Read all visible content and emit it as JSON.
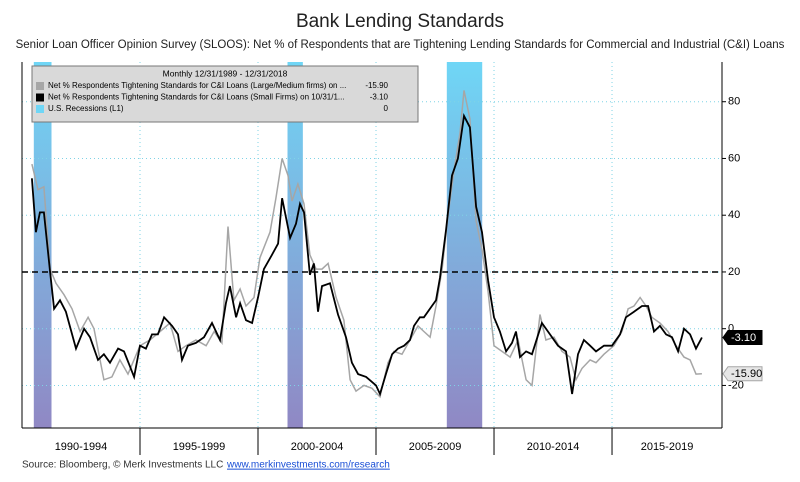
{
  "chart_data": {
    "type": "line",
    "title": "Bank Lending Standards",
    "subtitle": "Senior Loan Officer Opinion Survey (SLOOS): Net % of Respondents that are Tightening Lending Standards for Commercial and Industrial (C&I) Loans",
    "legend_title": "Monthly 12/31/1989 - 12/31/2018",
    "source": "Source: Bloomberg, © Merk Investments LLC",
    "source_link": "www.merkinvestments.com/research",
    "xlim": [
      1990,
      2019.66
    ],
    "ylim": [
      -35,
      94
    ],
    "yticks": [
      80,
      60,
      40,
      20,
      0,
      -20
    ],
    "grid": true,
    "reference_line": 20,
    "x_periods": [
      {
        "start": 1990,
        "end": 1995,
        "label": "1990-1994"
      },
      {
        "start": 1995,
        "end": 2000,
        "label": "1995-1999"
      },
      {
        "start": 2000,
        "end": 2005,
        "label": "2000-2004"
      },
      {
        "start": 2005,
        "end": 2010,
        "label": "2005-2009"
      },
      {
        "start": 2010,
        "end": 2015,
        "label": "2010-2014"
      },
      {
        "start": 2015,
        "end": 2020,
        "label": "2015-2019"
      }
    ],
    "recessions": {
      "name": "U.S. Recessions (L1)",
      "color": "#6fd6f6",
      "color_bottom": "#9088c4",
      "legend_value": 0,
      "spans": [
        [
          1990.5,
          1991.25
        ],
        [
          2001.25,
          2001.9
        ],
        [
          2008.0,
          2009.5
        ]
      ]
    },
    "series": [
      {
        "name": "Net % Respondents Tightening Standards for C&I Loans (Large/Medium firms) on ...",
        "color": "#a6a6a6",
        "last_label": "-15.90",
        "x": [
          1990.42,
          1990.68,
          1990.93,
          1991.19,
          1991.44,
          1991.78,
          1992.12,
          1992.46,
          1992.8,
          1993.05,
          1993.47,
          1993.81,
          1994.15,
          1994.49,
          1995.0,
          1995.42,
          1995.85,
          1996.27,
          1996.61,
          1996.95,
          1997.37,
          1997.8,
          1998.14,
          1998.47,
          1998.73,
          1998.98,
          1999.24,
          1999.49,
          1999.83,
          2000.08,
          2000.51,
          2000.76,
          2001.02,
          2001.27,
          2001.44,
          2001.69,
          2001.95,
          2002.2,
          2002.46,
          2002.71,
          2002.97,
          2003.31,
          2003.64,
          2003.9,
          2004.15,
          2004.49,
          2004.83,
          2005.17,
          2005.51,
          2005.76,
          2006.1,
          2006.44,
          2006.78,
          2007.03,
          2007.29,
          2007.54,
          2007.8,
          2008.05,
          2008.31,
          2008.56,
          2008.73,
          2008.98,
          2009.24,
          2009.49,
          2009.75,
          2010.0,
          2010.34,
          2010.68,
          2011.02,
          2011.36,
          2011.61,
          2011.95,
          2012.2,
          2012.54,
          2012.88,
          2013.22,
          2013.47,
          2013.73,
          2014.07,
          2014.32,
          2014.66,
          2015.08,
          2015.42,
          2015.68,
          2015.93,
          2016.19,
          2016.44,
          2016.69,
          2017.03,
          2017.37,
          2017.71,
          2018.05,
          2018.31,
          2018.56,
          2018.81
        ],
        "values": [
          58,
          49,
          50,
          21,
          16,
          12,
          7,
          -1,
          4,
          0,
          -18,
          -17,
          -11,
          -16,
          -6,
          -4,
          -1,
          2,
          -8,
          -6,
          -4,
          -6,
          -1,
          -5,
          36,
          10,
          14,
          8,
          11,
          25,
          34,
          46,
          60,
          54,
          45,
          51,
          44,
          26,
          21,
          21,
          23,
          11,
          3,
          -18,
          -22,
          -20,
          -21,
          -24,
          -12,
          -8,
          -9,
          -4,
          1,
          -1,
          -3,
          8,
          21,
          40,
          56,
          69,
          84,
          74,
          38,
          28,
          13,
          -6,
          -8,
          -10,
          -4,
          -18,
          -20,
          5,
          -4,
          -3,
          -8,
          -10,
          -18,
          -14,
          -11,
          -12,
          -9,
          -6,
          -1,
          7,
          8,
          11,
          8,
          4,
          2,
          -1,
          -6,
          -10,
          -11,
          -16,
          -15.9
        ]
      },
      {
        "name": "Net % Respondents Tightening Standards for C&I Loans (Small Firms) on 10/31/1...",
        "color": "#000000",
        "last_label": "-3.10",
        "x": [
          1990.42,
          1990.59,
          1990.76,
          1990.93,
          1991.19,
          1991.36,
          1991.61,
          1991.86,
          1992.29,
          1992.63,
          1992.88,
          1993.22,
          1993.47,
          1993.73,
          1994.07,
          1994.32,
          1994.75,
          1995.0,
          1995.25,
          1995.51,
          1995.76,
          1996.02,
          1996.36,
          1996.61,
          1996.78,
          1997.03,
          1997.37,
          1997.71,
          1998.05,
          1998.39,
          1998.64,
          1998.81,
          1999.07,
          1999.24,
          1999.49,
          1999.75,
          2000.0,
          2000.25,
          2000.59,
          2000.85,
          2001.02,
          2001.36,
          2001.61,
          2001.78,
          2001.95,
          2002.2,
          2002.37,
          2002.54,
          2002.71,
          2003.05,
          2003.39,
          2003.73,
          2003.98,
          2004.24,
          2004.58,
          2005.0,
          2005.17,
          2005.42,
          2005.68,
          2005.93,
          2006.19,
          2006.44,
          2006.61,
          2006.86,
          2007.03,
          2007.37,
          2007.54,
          2007.71,
          2007.97,
          2008.22,
          2008.47,
          2008.73,
          2008.98,
          2009.24,
          2009.49,
          2009.75,
          2010.0,
          2010.25,
          2010.51,
          2010.76,
          2010.93,
          2011.1,
          2011.36,
          2011.61,
          2012.03,
          2012.37,
          2012.71,
          2013.05,
          2013.31,
          2013.56,
          2013.81,
          2014.07,
          2014.32,
          2014.66,
          2015.0,
          2015.34,
          2015.59,
          2015.93,
          2016.27,
          2016.53,
          2016.78,
          2017.03,
          2017.29,
          2017.54,
          2017.8,
          2018.05,
          2018.31,
          2018.56,
          2018.81
        ],
        "values": [
          53,
          34,
          41,
          41,
          20,
          7,
          10,
          6,
          -7,
          0,
          -3,
          -11,
          -9,
          -12,
          -7,
          -8,
          -17,
          -6,
          -7,
          -2,
          -2,
          4,
          1,
          -2,
          -11,
          -6,
          -5,
          -3,
          2,
          -4,
          9,
          15,
          4,
          9,
          3,
          2,
          11,
          21,
          26,
          30,
          46,
          32,
          37,
          44,
          41,
          19,
          23,
          6,
          15,
          16,
          5,
          -3,
          -12,
          -16,
          -17,
          -20,
          -23,
          -16,
          -9,
          -7,
          -6,
          -4,
          1,
          4,
          4,
          8,
          10,
          18,
          35,
          54,
          60,
          75,
          71,
          43,
          34,
          17,
          4,
          -1,
          -8,
          -5,
          -1,
          -10,
          -8,
          -9,
          2,
          -2,
          -6,
          -8,
          -23,
          -9,
          -4,
          -6,
          -8,
          -6,
          -6,
          -2,
          4,
          6,
          8,
          8,
          -1,
          1,
          -2,
          -3,
          -8,
          0,
          -2,
          -7,
          -3.1
        ]
      }
    ]
  }
}
